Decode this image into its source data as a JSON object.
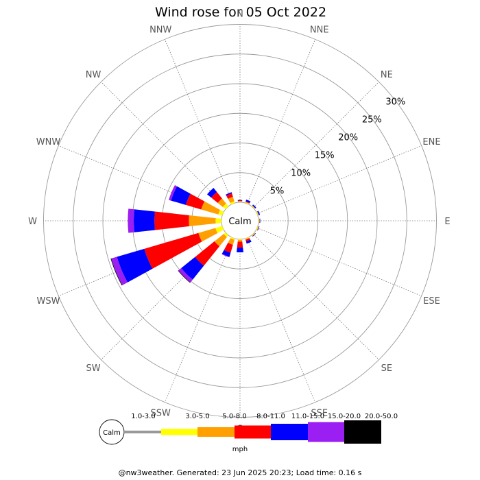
{
  "chart_data": {
    "type": "windrose",
    "title": "Wind rose for 05 Oct 2022",
    "directions": [
      "N",
      "NNE",
      "NE",
      "ENE",
      "E",
      "ESE",
      "SE",
      "SSE",
      "S",
      "SSW",
      "SW",
      "WSW",
      "W",
      "WNW",
      "NW",
      "NNW"
    ],
    "rings_percent": [
      5,
      10,
      15,
      20,
      25,
      30
    ],
    "ring_labels": [
      "5%",
      "10%",
      "15%",
      "20%",
      "25%",
      "30%"
    ],
    "calm_label": "Calm",
    "units": "mph",
    "speed_bins": [
      {
        "label": "1.0-3.0",
        "color": "#999999"
      },
      {
        "label": "3.0-5.0",
        "color": "#ffff00"
      },
      {
        "label": "5.0-8.0",
        "color": "#ffa000"
      },
      {
        "label": "8.0-11.0",
        "color": "#ff0000"
      },
      {
        "label": "11.0-15.0",
        "color": "#0000ff"
      },
      {
        "label": "15.0-20.0",
        "color": "#9b1ff2"
      },
      {
        "label": "20.0-50.0",
        "color": "#000000"
      }
    ],
    "series_by_direction": {
      "N": [
        0,
        0.1,
        0.1,
        0.1,
        0.1,
        0,
        0
      ],
      "NNE": [
        0,
        0.1,
        0.1,
        0.1,
        0.3,
        0,
        0
      ],
      "NE": [
        0,
        0.1,
        0.1,
        0,
        0.2,
        0,
        0
      ],
      "ENE": [
        0,
        0.1,
        0.1,
        0,
        0.2,
        0,
        0
      ],
      "E": [
        0,
        0.1,
        0.1,
        0,
        0.1,
        0,
        0
      ],
      "ESE": [
        0,
        0.1,
        0.1,
        0,
        0.1,
        0,
        0
      ],
      "SE": [
        0,
        0.1,
        0.1,
        0,
        0.1,
        0,
        0
      ],
      "SSE": [
        0,
        0.1,
        0.1,
        0.3,
        0.4,
        0,
        0
      ],
      "S": [
        0,
        0.1,
        0.3,
        1.0,
        0.8,
        0,
        0
      ],
      "SSW": [
        0,
        0.2,
        0.9,
        1.4,
        0.7,
        0.1,
        0
      ],
      "SW": [
        0,
        0.4,
        2.0,
        4.2,
        3.0,
        0.6,
        0.1
      ],
      "WSW": [
        0,
        1.2,
        3.0,
        9.5,
        4.8,
        1.0,
        0.1
      ],
      "W": [
        0,
        1.0,
        4.5,
        5.8,
        3.5,
        1.0,
        0
      ],
      "WNW": [
        0,
        0.7,
        3.0,
        2.7,
        2.6,
        0.4,
        0
      ],
      "NW": [
        0,
        0.6,
        1.1,
        1.4,
        0.9,
        0,
        0
      ],
      "NNW": [
        0,
        0.3,
        0.8,
        0.6,
        0.2,
        0,
        0
      ]
    }
  },
  "footer": "@nw3weather. Generated: 23 Jun 2025 20:23; Load time: 0.16 s"
}
